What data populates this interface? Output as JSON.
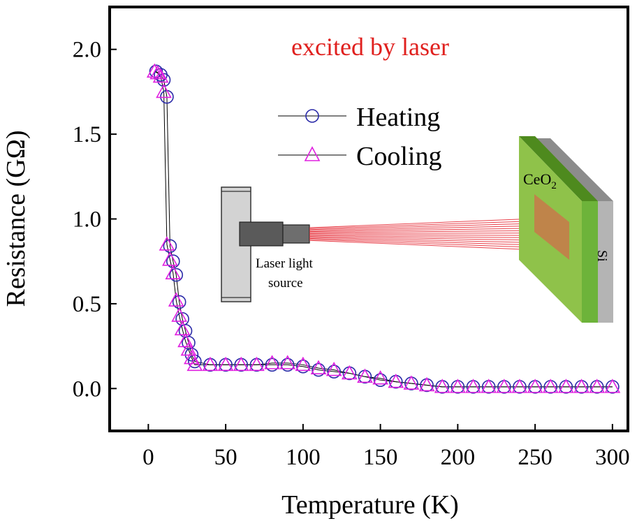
{
  "chart_data": {
    "type": "scatter",
    "title": "",
    "xlabel": "Temperature (K)",
    "ylabel": "Resistance (GΩ)",
    "xlim": [
      -25,
      310
    ],
    "ylim": [
      -0.25,
      2.25
    ],
    "xticks": [
      0,
      50,
      100,
      150,
      200,
      250,
      300
    ],
    "xtick_labels": [
      "0",
      "50",
      "100",
      "150",
      "200",
      "250",
      "300"
    ],
    "yticks": [
      0.0,
      0.5,
      1.0,
      1.5,
      2.0
    ],
    "ytick_labels": [
      "0.0",
      "0.5",
      "1.0",
      "1.5",
      "2.0"
    ],
    "grid": false,
    "legend_position": "upper-center",
    "series": [
      {
        "name": "Heating",
        "marker": "circle",
        "color": "#2a2aa8",
        "x": [
          5,
          8,
          10,
          12,
          14,
          16,
          18,
          20,
          22,
          24,
          26,
          28,
          30,
          40,
          50,
          60,
          70,
          80,
          90,
          100,
          110,
          120,
          130,
          140,
          150,
          160,
          170,
          180,
          190,
          200,
          210,
          220,
          230,
          240,
          250,
          260,
          270,
          280,
          290,
          300
        ],
        "y": [
          1.87,
          1.85,
          1.82,
          1.72,
          0.84,
          0.75,
          0.67,
          0.51,
          0.41,
          0.34,
          0.27,
          0.2,
          0.16,
          0.14,
          0.14,
          0.14,
          0.14,
          0.14,
          0.14,
          0.13,
          0.11,
          0.1,
          0.09,
          0.07,
          0.05,
          0.04,
          0.03,
          0.02,
          0.01,
          0.01,
          0.01,
          0.01,
          0.01,
          0.01,
          0.01,
          0.01,
          0.01,
          0.01,
          0.01,
          0.01
        ]
      },
      {
        "name": "Cooling",
        "marker": "triangle",
        "color": "#e020e0",
        "x": [
          4,
          6,
          8,
          10,
          12,
          14,
          16,
          18,
          20,
          22,
          24,
          26,
          28,
          30,
          40,
          50,
          60,
          70,
          80,
          90,
          100,
          110,
          120,
          130,
          140,
          150,
          160,
          170,
          180,
          190,
          200,
          210,
          220,
          230,
          240,
          250,
          260,
          270,
          280,
          290,
          300
        ],
        "y": [
          1.87,
          1.86,
          1.84,
          1.75,
          0.85,
          0.76,
          0.68,
          0.52,
          0.43,
          0.35,
          0.28,
          0.23,
          0.18,
          0.14,
          0.14,
          0.14,
          0.14,
          0.14,
          0.15,
          0.15,
          0.14,
          0.12,
          0.11,
          0.09,
          0.07,
          0.06,
          0.04,
          0.03,
          0.02,
          0.01,
          0.01,
          0.01,
          0.01,
          0.01,
          0.01,
          0.01,
          0.01,
          0.01,
          0.01,
          0.01,
          0.01
        ]
      }
    ],
    "annotations": {
      "headline": "excited by laser",
      "headline_color": "#e0201e",
      "laser_label_line1": "Laser light",
      "laser_label_line2": "source",
      "film_label_main": "CeO",
      "film_label_sub": "2",
      "substrate_label": "Si"
    }
  }
}
